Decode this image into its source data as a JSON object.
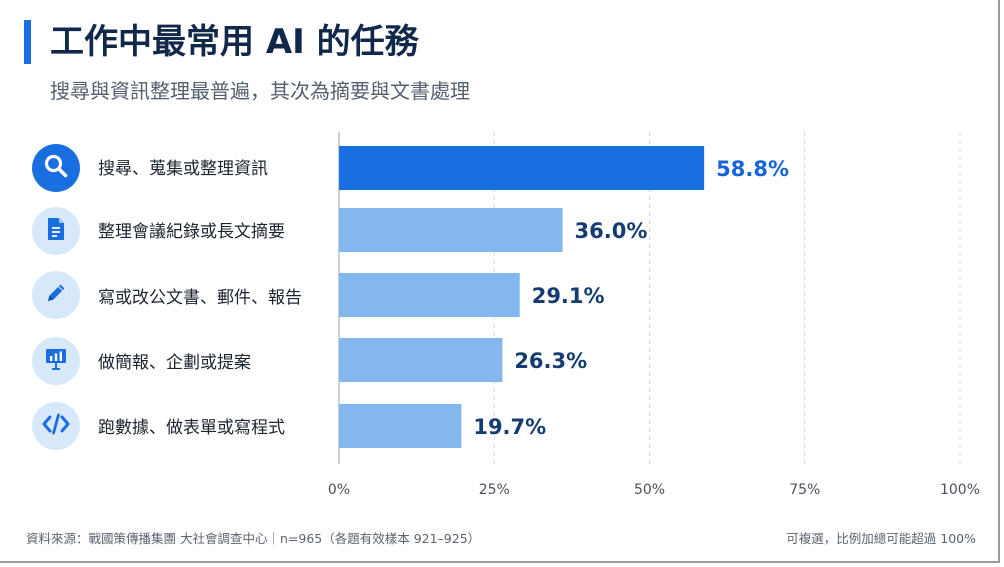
{
  "title": "工作中最常用 AI 的任務",
  "subtitle": "搜尋與資訊整理最普遍，其次為摘要與文書處理",
  "footer": {
    "source": "資料來源：戰國策傳播集團 大社會調查中心｜n=965（各題有效樣本 921–925）",
    "note": "可複選，比例加總可能超過 100%"
  },
  "colors": {
    "highlight_bar": "#1a6fe0",
    "bar": "#84b7ee",
    "highlight_value": "#1565d8",
    "value": "#153b73"
  },
  "chart_data": {
    "type": "bar",
    "orientation": "horizontal",
    "categories": [
      "搜尋、蒐集或整理資訊",
      "整理會議紀錄或長文摘要",
      "寫或改公文書、郵件、報告",
      "做簡報、企劃或提案",
      "跑數據、做表單或寫程式"
    ],
    "icons": [
      "search-icon",
      "document-icon",
      "pencil-icon",
      "presentation-icon",
      "code-icon"
    ],
    "values": [
      58.8,
      36.0,
      29.1,
      26.3,
      19.7
    ],
    "value_labels": [
      "58.8%",
      "36.0%",
      "29.1%",
      "26.3%",
      "19.7%"
    ],
    "xlim": [
      0,
      100
    ],
    "xticks": [
      0,
      25,
      50,
      75,
      100
    ],
    "xtick_labels": [
      "0%",
      "25%",
      "50%",
      "75%",
      "100%"
    ],
    "grid": true,
    "xlabel": "",
    "ylabel": ""
  }
}
